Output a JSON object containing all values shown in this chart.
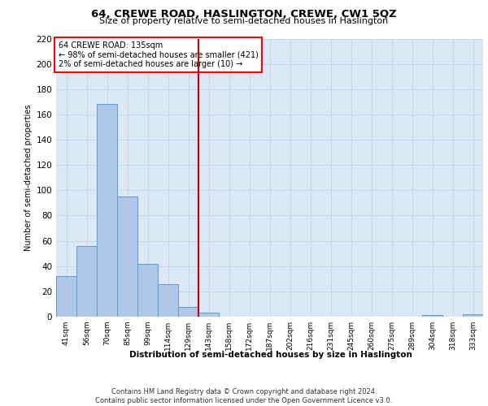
{
  "title": "64, CREWE ROAD, HASLINGTON, CREWE, CW1 5QZ",
  "subtitle": "Size of property relative to semi-detached houses in Haslington",
  "xlabel": "Distribution of semi-detached houses by size in Haslington",
  "ylabel": "Number of semi-detached properties",
  "bin_labels": [
    "41sqm",
    "56sqm",
    "70sqm",
    "85sqm",
    "99sqm",
    "114sqm",
    "129sqm",
    "143sqm",
    "158sqm",
    "172sqm",
    "187sqm",
    "202sqm",
    "216sqm",
    "231sqm",
    "245sqm",
    "260sqm",
    "275sqm",
    "289sqm",
    "304sqm",
    "318sqm",
    "333sqm"
  ],
  "bin_values": [
    32,
    56,
    168,
    95,
    42,
    26,
    8,
    3,
    0,
    0,
    0,
    0,
    0,
    0,
    0,
    0,
    0,
    0,
    1,
    0,
    2
  ],
  "bar_color": "#aec6e8",
  "bar_edge_color": "#5b9bd5",
  "property_label": "64 CREWE ROAD: 135sqm",
  "pct_smaller": 98,
  "n_smaller": 421,
  "pct_larger": 2,
  "n_larger": 10,
  "vline_x": 6.5,
  "vline_color": "#cc0000",
  "ylim": [
    0,
    220
  ],
  "yticks": [
    0,
    20,
    40,
    60,
    80,
    100,
    120,
    140,
    160,
    180,
    200,
    220
  ],
  "grid_color": "#c8d8e8",
  "bg_color": "#dce8f5",
  "footer_line1": "Contains HM Land Registry data © Crown copyright and database right 2024.",
  "footer_line2": "Contains public sector information licensed under the Open Government Licence v3.0."
}
